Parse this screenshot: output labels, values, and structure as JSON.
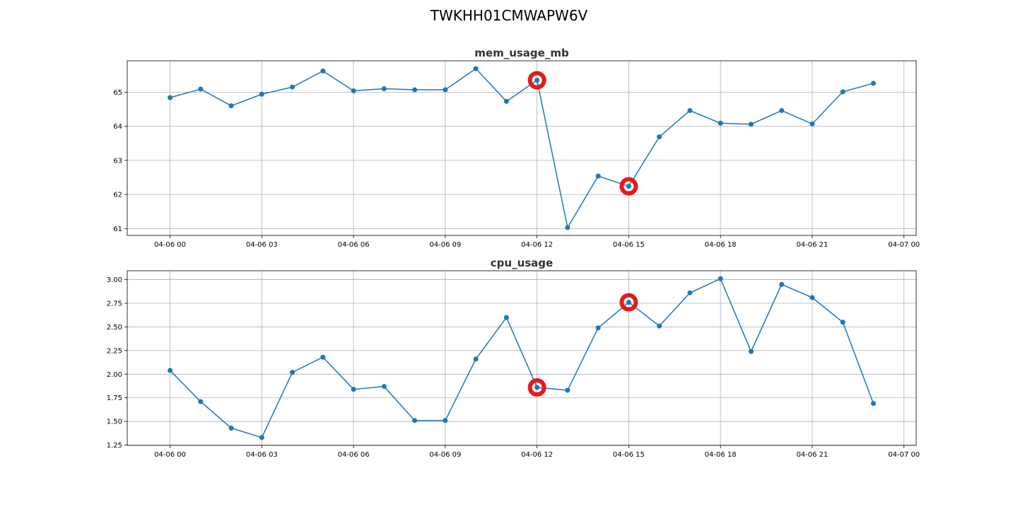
{
  "figure": {
    "title": "TWKHH01CMWAPW6V"
  },
  "colors": {
    "series": "#1f77b4",
    "anomaly": "#e41a1c",
    "grid": "#b0b0b0"
  },
  "chart_data": [
    {
      "type": "line",
      "title": "mem_usage_mb",
      "xlabel": "",
      "ylabel": "",
      "grid": true,
      "x": [
        "04-06 00:00",
        "04-06 01:00",
        "04-06 02:00",
        "04-06 03:00",
        "04-06 04:00",
        "04-06 05:00",
        "04-06 06:00",
        "04-06 07:00",
        "04-06 08:00",
        "04-06 09:00",
        "04-06 10:00",
        "04-06 11:00",
        "04-06 12:00",
        "04-06 13:00",
        "04-06 14:00",
        "04-06 15:00",
        "04-06 16:00",
        "04-06 17:00",
        "04-06 18:00",
        "04-06 19:00",
        "04-06 20:00",
        "04-06 21:00",
        "04-06 22:00",
        "04-06 23:00"
      ],
      "values": [
        64.84,
        65.09,
        64.6,
        64.94,
        65.15,
        65.62,
        65.04,
        65.1,
        65.07,
        65.07,
        65.69,
        64.73,
        65.35,
        61.03,
        62.54,
        62.24,
        63.69,
        64.46,
        64.09,
        64.06,
        64.46,
        64.07,
        65.01,
        65.26
      ],
      "anomalies": [
        "04-06 12:00",
        "04-06 15:00"
      ],
      "xlim": [
        "04-05 22:36",
        "04-07 00:24"
      ],
      "ylim": [
        60.8,
        65.92
      ],
      "xticks": [
        "04-06 00",
        "04-06 03",
        "04-06 06",
        "04-06 09",
        "04-06 12",
        "04-06 15",
        "04-06 18",
        "04-06 21",
        "04-07 00"
      ],
      "yticks": [
        "61",
        "62",
        "63",
        "64",
        "65"
      ]
    },
    {
      "type": "line",
      "title": "cpu_usage",
      "xlabel": "",
      "ylabel": "",
      "grid": true,
      "x": [
        "04-06 00:00",
        "04-06 01:00",
        "04-06 02:00",
        "04-06 03:00",
        "04-06 04:00",
        "04-06 05:00",
        "04-06 06:00",
        "04-06 07:00",
        "04-06 08:00",
        "04-06 09:00",
        "04-06 10:00",
        "04-06 11:00",
        "04-06 12:00",
        "04-06 13:00",
        "04-06 14:00",
        "04-06 15:00",
        "04-06 16:00",
        "04-06 17:00",
        "04-06 18:00",
        "04-06 19:00",
        "04-06 20:00",
        "04-06 21:00",
        "04-06 22:00",
        "04-06 23:00"
      ],
      "values": [
        2.04,
        1.71,
        1.43,
        1.33,
        2.02,
        2.18,
        1.84,
        1.87,
        1.51,
        1.51,
        2.16,
        2.6,
        1.86,
        1.83,
        2.49,
        2.76,
        2.51,
        2.86,
        3.01,
        2.24,
        2.95,
        2.81,
        2.55,
        1.69
      ],
      "anomalies": [
        "04-06 12:00",
        "04-06 15:00"
      ],
      "xlim": [
        "04-05 22:36",
        "04-07 00:24"
      ],
      "ylim": [
        1.247,
        3.094
      ],
      "xticks": [
        "04-06 00",
        "04-06 03",
        "04-06 06",
        "04-06 09",
        "04-06 12",
        "04-06 15",
        "04-06 18",
        "04-06 21",
        "04-07 00"
      ],
      "yticks": [
        "1.25",
        "1.50",
        "1.75",
        "2.00",
        "2.25",
        "2.50",
        "2.75",
        "3.00"
      ]
    }
  ]
}
